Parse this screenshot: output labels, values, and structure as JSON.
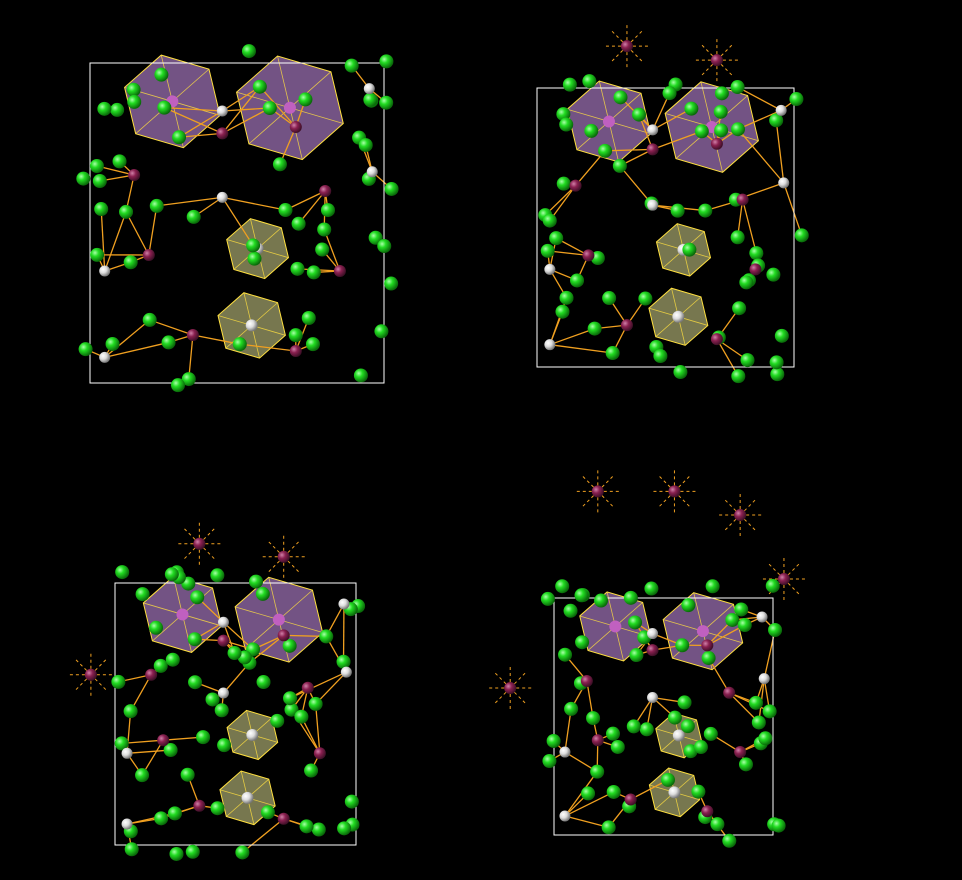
{
  "background": "#000000",
  "colors": {
    "cell_outline": "#ffffff",
    "bond": "#f0a020",
    "ligand_atom": "#22dd22",
    "metal_atom": "#8a2050",
    "central_atom": "#e8e8e8",
    "purple_polyhedron": "#9a6fb0",
    "yellow_polyhedron": "#d8d890",
    "polyhedron_edge": "#ffe040"
  },
  "panels": [
    {
      "name": "view-1"
    },
    {
      "name": "view-2"
    },
    {
      "name": "view-3"
    },
    {
      "name": "view-4"
    }
  ],
  "atom_types": [
    "ligand",
    "metal",
    "central"
  ]
}
